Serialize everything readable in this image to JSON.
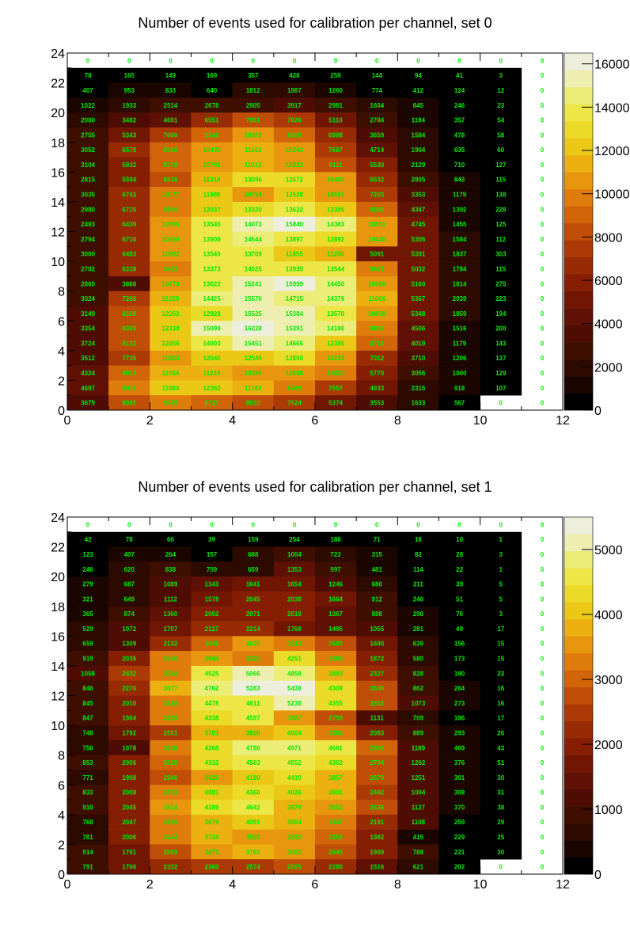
{
  "charts": [
    {
      "chart_data": {
        "type": "heatmap",
        "title": "Number of events used for calibration per channel, set 0",
        "x_ticks": [
          "0",
          "2",
          "4",
          "6",
          "8",
          "10",
          "12"
        ],
        "y_ticks": [
          "0",
          "2",
          "4",
          "6",
          "8",
          "10",
          "12",
          "14",
          "16",
          "18",
          "20",
          "22",
          "24"
        ],
        "xlim": [
          0,
          12
        ],
        "ylim": [
          0,
          24
        ],
        "z_range": [
          0,
          16500
        ],
        "colorbar_ticks": [
          "0",
          "2000",
          "4000",
          "6000",
          "8000",
          "10000",
          "12000",
          "14000",
          "16000"
        ],
        "colorbar_tick_values": [
          0,
          2000,
          4000,
          6000,
          8000,
          10000,
          12000,
          14000,
          16000
        ],
        "text_color": "#00ee00",
        "rows_top_to_bottom": [
          [
            "0",
            "0",
            "0",
            "0",
            "0",
            "0",
            "0",
            "0",
            "0",
            "0",
            "0",
            "0"
          ],
          [
            "78",
            "165",
            "149",
            "169",
            "357",
            "428",
            "259",
            "144",
            "94",
            "41",
            "3",
            "0"
          ],
          [
            "407",
            "953",
            "833",
            "640",
            "1812",
            "1887",
            "1260",
            "774",
            "412",
            "124",
            "12",
            "0"
          ],
          [
            "1022",
            "1933",
            "2514",
            "2678",
            "2905",
            "3917",
            "2981",
            "1604",
            "845",
            "246",
            "23",
            "0"
          ],
          [
            "2000",
            "3482",
            "4691",
            "6551",
            "7951",
            "7626",
            "5110",
            "2704",
            "1184",
            "357",
            "54",
            "0"
          ],
          [
            "2755",
            "5343",
            "7660",
            "9246",
            "10379",
            "8658",
            "6988",
            "3659",
            "1584",
            "478",
            "58",
            "0"
          ],
          [
            "3052",
            "6578",
            "8920",
            "10430",
            "11652",
            "10243",
            "7687",
            "4714",
            "1904",
            "635",
            "60",
            "0"
          ],
          [
            "3104",
            "5932",
            "8778",
            "10701",
            "11612",
            "10922",
            "8111",
            "5530",
            "2129",
            "710",
            "127",
            "0"
          ],
          [
            "2815",
            "5594",
            "8618",
            "11318",
            "13096",
            "12672",
            "10490",
            "6532",
            "2805",
            "843",
            "115",
            "0"
          ],
          [
            "3035",
            "6742",
            "10077",
            "11988",
            "10794",
            "12528",
            "10551",
            "7203",
            "3353",
            "1179",
            "138",
            "0"
          ],
          [
            "2980",
            "6715",
            "9806",
            "12037",
            "13320",
            "13622",
            "12385",
            "8890",
            "4347",
            "1392",
            "228",
            "0"
          ],
          [
            "2493",
            "6439",
            "10595",
            "13540",
            "14973",
            "15840",
            "14383",
            "10851",
            "4745",
            "1455",
            "125",
            "0"
          ],
          [
            "2794",
            "6710",
            "10820",
            "13908",
            "14544",
            "13897",
            "12892",
            "10420",
            "5306",
            "1584",
            "112",
            "0"
          ],
          [
            "3000",
            "6483",
            "10802",
            "13540",
            "13709",
            "11855",
            "11250",
            "5091",
            "5391",
            "1837",
            "303",
            "0"
          ],
          [
            "2702",
            "6338",
            "9463",
            "13373",
            "14025",
            "13935",
            "13544",
            "9871",
            "5032",
            "1784",
            "115",
            "0"
          ],
          [
            "2869",
            "3888",
            "10479",
            "13622",
            "15241",
            "15999",
            "14450",
            "10956",
            "5160",
            "1814",
            "275",
            "0"
          ],
          [
            "3024",
            "7268",
            "11259",
            "14425",
            "15570",
            "14715",
            "14379",
            "11006",
            "5367",
            "2039",
            "223",
            "0"
          ],
          [
            "3149",
            "8168",
            "12052",
            "12928",
            "15525",
            "15384",
            "13570",
            "10628",
            "5348",
            "1859",
            "194",
            "0"
          ],
          [
            "3354",
            "8369",
            "12330",
            "15099",
            "16228",
            "15391",
            "14180",
            "9886",
            "4506",
            "1516",
            "200",
            "0"
          ],
          [
            "3724",
            "8132",
            "12056",
            "14003",
            "15451",
            "14665",
            "12385",
            "8718",
            "4019",
            "1179",
            "143",
            "0"
          ],
          [
            "3512",
            "7735",
            "10303",
            "12040",
            "12546",
            "12850",
            "10233",
            "7012",
            "3710",
            "1206",
            "137",
            "0"
          ],
          [
            "4324",
            "9014",
            "11054",
            "11214",
            "10366",
            "10608",
            "10033",
            "5779",
            "3056",
            "1000",
            "129",
            "0"
          ],
          [
            "4697",
            "9931",
            "11984",
            "12260",
            "11782",
            "9969",
            "7557",
            "4933",
            "2315",
            "918",
            "107",
            "0"
          ],
          [
            "3679",
            "8082",
            "9489",
            "8727",
            "8610",
            "7524",
            "5374",
            "3553",
            "1633",
            "567",
            "0",
            "0"
          ]
        ]
      }
    },
    {
      "chart_data": {
        "type": "heatmap",
        "title": "Number of events used for calibration per channel, set 1",
        "x_ticks": [
          "0",
          "2",
          "4",
          "6",
          "8",
          "10",
          "12"
        ],
        "y_ticks": [
          "0",
          "2",
          "4",
          "6",
          "8",
          "10",
          "12",
          "14",
          "16",
          "18",
          "20",
          "22",
          "24"
        ],
        "xlim": [
          0,
          12
        ],
        "ylim": [
          0,
          24
        ],
        "z_range": [
          0,
          5500
        ],
        "colorbar_ticks": [
          "0",
          "1000",
          "2000",
          "3000",
          "4000",
          "5000"
        ],
        "colorbar_tick_values": [
          0,
          1000,
          2000,
          3000,
          4000,
          5000
        ],
        "text_color": "#00ee00",
        "rows_top_to_bottom": [
          [
            "0",
            "0",
            "0",
            "0",
            "0",
            "0",
            "0",
            "0",
            "0",
            "0",
            "0",
            "0"
          ],
          [
            "42",
            "78",
            "66",
            "39",
            "159",
            "254",
            "188",
            "71",
            "18",
            "10",
            "1",
            "0"
          ],
          [
            "123",
            "407",
            "264",
            "157",
            "688",
            "1004",
            "723",
            "315",
            "82",
            "28",
            "3",
            "0"
          ],
          [
            "246",
            "620",
            "838",
            "759",
            "659",
            "1353",
            "997",
            "481",
            "114",
            "22",
            "1",
            "0"
          ],
          [
            "279",
            "687",
            "1089",
            "1343",
            "1641",
            "1654",
            "1246",
            "680",
            "211",
            "39",
            "5",
            "0"
          ],
          [
            "321",
            "649",
            "1112",
            "1578",
            "2045",
            "2038",
            "1664",
            "912",
            "240",
            "51",
            "5",
            "0"
          ],
          [
            "365",
            "874",
            "1360",
            "2002",
            "2071",
            "2019",
            "1367",
            "888",
            "290",
            "76",
            "3",
            "0"
          ],
          [
            "529",
            "1072",
            "1707",
            "2127",
            "2214",
            "1768",
            "1495",
            "1055",
            "281",
            "49",
            "17",
            "0"
          ],
          [
            "659",
            "1309",
            "2132",
            "3045",
            "3625",
            "3313",
            "2680",
            "1690",
            "639",
            "156",
            "15",
            "0"
          ],
          [
            "919",
            "2035",
            "3276",
            "3664",
            "3329",
            "4251",
            "3280",
            "1872",
            "580",
            "173",
            "15",
            "0"
          ],
          [
            "1058",
            "2432",
            "3394",
            "4525",
            "5066",
            "4858",
            "3893",
            "2327",
            "828",
            "190",
            "23",
            "0"
          ],
          [
            "846",
            "2276",
            "3677",
            "4762",
            "5283",
            "5438",
            "4309",
            "2636",
            "862",
            "264",
            "16",
            "0"
          ],
          [
            "845",
            "2010",
            "3188",
            "4478",
            "4611",
            "5238",
            "4355",
            "2652",
            "1073",
            "273",
            "16",
            "0"
          ],
          [
            "847",
            "1904",
            "3239",
            "4338",
            "4597",
            "3487",
            "2759",
            "1131",
            "709",
            "196",
            "17",
            "0"
          ],
          [
            "748",
            "1792",
            "2551",
            "3781",
            "3850",
            "4004",
            "3302",
            "2083",
            "889",
            "293",
            "26",
            "0"
          ],
          [
            "756",
            "1078",
            "3188",
            "4268",
            "4790",
            "4971",
            "4661",
            "2996",
            "1189",
            "409",
            "43",
            "0"
          ],
          [
            "853",
            "2006",
            "3138",
            "4332",
            "4583",
            "4552",
            "4362",
            "2794",
            "1262",
            "376",
            "51",
            "0"
          ],
          [
            "771",
            "1998",
            "2846",
            "3529",
            "4180",
            "4410",
            "3857",
            "2670",
            "1251",
            "301",
            "30",
            "0"
          ],
          [
            "833",
            "2008",
            "3173",
            "4081",
            "4360",
            "4026",
            "3901",
            "2442",
            "1094",
            "308",
            "31",
            "0"
          ],
          [
            "910",
            "2045",
            "3414",
            "4389",
            "4642",
            "3879",
            "3552",
            "2636",
            "1127",
            "370",
            "38",
            "0"
          ],
          [
            "768",
            "2047",
            "3265",
            "3679",
            "4091",
            "3864",
            "3347",
            "2191",
            "1108",
            "259",
            "29",
            "0"
          ],
          [
            "781",
            "2006",
            "3234",
            "3734",
            "3593",
            "3582",
            "2959",
            "1982",
            "415",
            "229",
            "25",
            "0"
          ],
          [
            "914",
            "1791",
            "2869",
            "3473",
            "3763",
            "3652",
            "2845",
            "1909",
            "788",
            "221",
            "30",
            "0"
          ],
          [
            "791",
            "1766",
            "2332",
            "2360",
            "2574",
            "2665",
            "2280",
            "1516",
            "621",
            "202",
            "0",
            "0"
          ]
        ]
      }
    }
  ]
}
